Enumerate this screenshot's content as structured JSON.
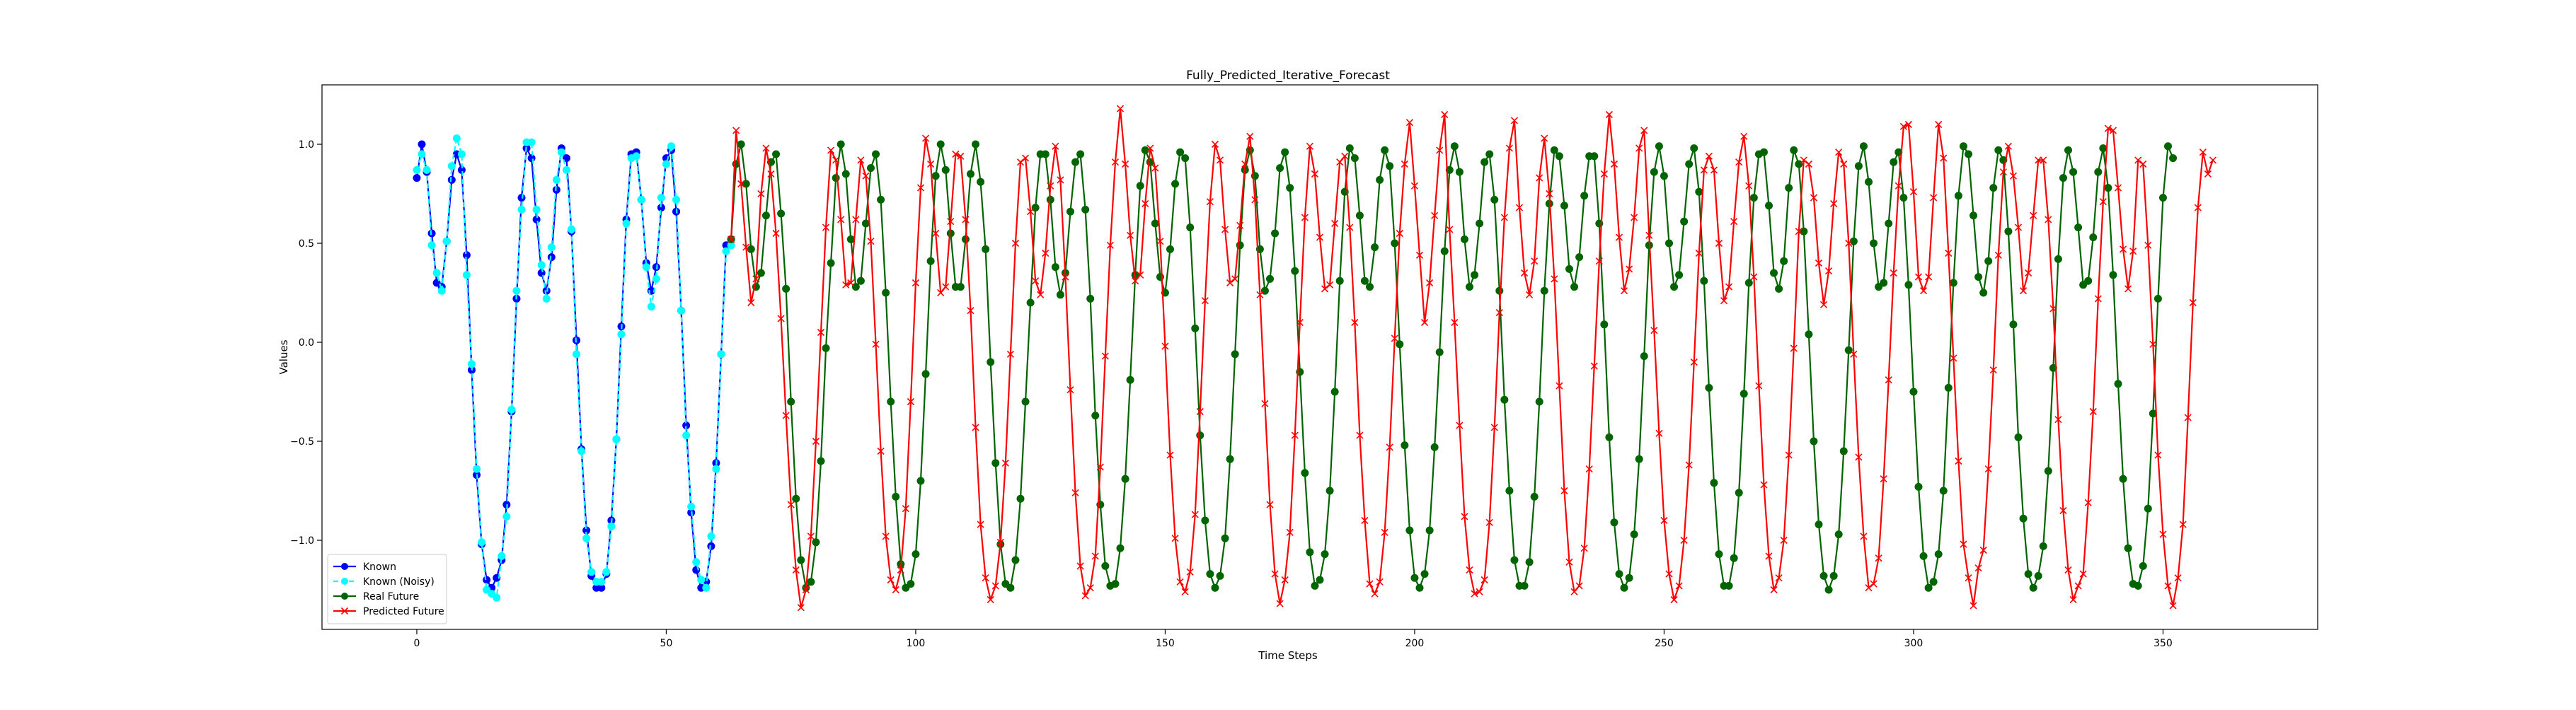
{
  "chart_data": {
    "type": "line",
    "title": "Fully_Predicted_Iterative_Forecast",
    "xlabel": "Time Steps",
    "ylabel": "Values",
    "xlim": [
      -19,
      381
    ],
    "ylim": [
      -1.45,
      1.3
    ],
    "xticks": [
      0,
      50,
      100,
      150,
      200,
      250,
      300,
      350
    ],
    "yticks": [
      -1.0,
      -0.5,
      0.0,
      0.5,
      1.0
    ],
    "xtick_labels": [
      "0",
      "50",
      "100",
      "150",
      "200",
      "250",
      "300",
      "350"
    ],
    "ytick_labels": [
      "−1.0",
      "−0.5",
      "0.0",
      "0.5",
      "1.0"
    ],
    "grid": false,
    "legend_position": "lower-left",
    "series": [
      {
        "name": "Known",
        "color": "#0000ff",
        "marker": "circle",
        "line_style": "solid",
        "x_start": 0,
        "values": [
          0.83,
          1.0,
          0.86,
          0.55,
          0.3,
          0.28,
          0.51,
          0.82,
          0.95,
          0.87,
          0.44,
          -0.14,
          -0.67,
          -1.02,
          -1.2,
          -1.24,
          -1.19,
          -1.1,
          -0.82,
          -0.35,
          0.22,
          0.73,
          0.98,
          0.93,
          0.62,
          0.35,
          0.26,
          0.43,
          0.77,
          0.98,
          0.93,
          0.56,
          0.01,
          -0.54,
          -0.95,
          -1.18,
          -1.24,
          -1.24,
          -1.17,
          -0.9,
          -0.49,
          0.08,
          0.62,
          0.95,
          0.96,
          0.72,
          0.4,
          0.26,
          0.38,
          0.68,
          0.93,
          0.97,
          0.66,
          0.16,
          -0.42,
          -0.86,
          -1.15,
          -1.24,
          -1.21,
          -1.03,
          -0.61,
          -0.06,
          0.49,
          0.52
        ]
      },
      {
        "name": "Known (Noisy)",
        "color": "#00ffff",
        "marker": "circle",
        "line_style": "dashed",
        "x_start": 0,
        "values": [
          0.87,
          0.95,
          0.87,
          0.49,
          0.35,
          0.26,
          0.51,
          0.89,
          1.03,
          0.95,
          0.34,
          -0.11,
          -0.64,
          -1.01,
          -1.25,
          -1.27,
          -1.29,
          -1.08,
          -0.88,
          -0.34,
          0.26,
          0.67,
          1.01,
          1.01,
          0.67,
          0.39,
          0.22,
          0.48,
          0.82,
          0.96,
          0.87,
          0.57,
          -0.06,
          -0.55,
          -0.99,
          -1.16,
          -1.21,
          -1.21,
          -1.16,
          -0.93,
          -0.49,
          0.04,
          0.6,
          0.93,
          0.94,
          0.72,
          0.38,
          0.18,
          0.32,
          0.73,
          0.9,
          0.99,
          0.72,
          0.16,
          -0.47,
          -0.83,
          -1.11,
          -1.2,
          -1.24,
          -0.98,
          -0.64,
          -0.06,
          0.46,
          0.49
        ]
      },
      {
        "name": "Real Future",
        "color": "#006400",
        "marker": "circle",
        "line_style": "solid",
        "x_start": 63,
        "values": [
          0.52,
          0.9,
          1.0,
          0.8,
          0.47,
          0.28,
          0.35,
          0.64,
          0.91,
          0.95,
          0.65,
          0.27,
          -0.3,
          -0.79,
          -1.1,
          -1.24,
          -1.21,
          -1.01,
          -0.6,
          -0.03,
          0.4,
          0.83,
          1.0,
          0.85,
          0.52,
          0.28,
          0.31,
          0.6,
          0.88,
          0.95,
          0.72,
          0.25,
          -0.3,
          -0.78,
          -1.12,
          -1.24,
          -1.22,
          -1.07,
          -0.7,
          -0.16,
          0.41,
          0.84,
          1.0,
          0.87,
          0.55,
          0.28,
          0.28,
          0.52,
          0.85,
          1.0,
          0.81,
          0.47,
          -0.1,
          -0.61,
          -1.02,
          -1.22,
          -1.24,
          -1.1,
          -0.79,
          -0.3,
          0.2,
          0.68,
          0.95,
          0.95,
          0.72,
          0.38,
          0.24,
          0.35,
          0.66,
          0.91,
          0.95,
          0.67,
          0.22,
          -0.37,
          -0.82,
          -1.13,
          -1.23,
          -1.22,
          -1.04,
          -0.69,
          -0.19,
          0.34,
          0.79,
          0.97,
          0.91,
          0.6,
          0.33,
          0.25,
          0.47,
          0.8,
          0.96,
          0.93,
          0.58,
          0.07,
          -0.47,
          -0.9,
          -1.17,
          -1.24,
          -1.18,
          -0.99,
          -0.59,
          -0.06,
          0.49,
          0.87,
          0.97,
          0.84,
          0.47,
          0.26,
          0.32,
          0.55,
          0.88,
          0.96,
          0.78,
          0.36,
          -0.15,
          -0.66,
          -1.06,
          -1.23,
          -1.2,
          -1.07,
          -0.75,
          -0.25,
          0.31,
          0.76,
          0.98,
          0.93,
          0.64,
          0.31,
          0.28,
          0.48,
          0.82,
          0.97,
          0.89,
          0.5,
          -0.01,
          -0.52,
          -0.95,
          -1.19,
          -1.24,
          -1.17,
          -0.95,
          -0.53,
          -0.05,
          0.46,
          0.87,
          0.99,
          0.86,
          0.52,
          0.28,
          0.34,
          0.6,
          0.91,
          0.95,
          0.72,
          0.26,
          -0.29,
          -0.75,
          -1.1,
          -1.23,
          -1.23,
          -1.11,
          -0.78,
          -0.3,
          0.26,
          0.7,
          0.97,
          0.94,
          0.69,
          0.37,
          0.28,
          0.43,
          0.74,
          0.94,
          0.94,
          0.6,
          0.09,
          -0.48,
          -0.91,
          -1.17,
          -1.24,
          -1.19,
          -0.97,
          -0.59,
          -0.07,
          0.49,
          0.86,
          0.99,
          0.84,
          0.5,
          0.28,
          0.34,
          0.61,
          0.9,
          0.98,
          0.76,
          0.31,
          -0.23,
          -0.71,
          -1.07,
          -1.23,
          -1.23,
          -1.09,
          -0.76,
          -0.26,
          0.3,
          0.73,
          0.95,
          0.96,
          0.69,
          0.35,
          0.27,
          0.41,
          0.78,
          0.97,
          0.9,
          0.56,
          0.04,
          -0.5,
          -0.92,
          -1.18,
          -1.25,
          -1.18,
          -0.97,
          -0.55,
          -0.04,
          0.51,
          0.89,
          0.99,
          0.81,
          0.5,
          0.28,
          0.3,
          0.6,
          0.91,
          0.96,
          0.73,
          0.29,
          -0.25,
          -0.73,
          -1.08,
          -1.24,
          -1.21,
          -1.07,
          -0.75,
          -0.23,
          0.3,
          0.74,
          0.99,
          0.95,
          0.64,
          0.33,
          0.25,
          0.41,
          0.78,
          0.97,
          0.92,
          0.56,
          0.09,
          -0.48,
          -0.89,
          -1.17,
          -1.24,
          -1.18,
          -1.03,
          -0.65,
          -0.13,
          0.42,
          0.83,
          0.97,
          0.86,
          0.58,
          0.29,
          0.31,
          0.53,
          0.86,
          0.98,
          0.78,
          0.34,
          -0.21,
          -0.69,
          -1.04,
          -1.22,
          -1.23,
          -1.13,
          -0.84,
          -0.36,
          0.22,
          0.73,
          0.99,
          0.93
        ]
      },
      {
        "name": "Predicted Future",
        "color": "#ff0000",
        "marker": "x",
        "line_style": "solid",
        "x_start": 63,
        "values": [
          0.52,
          1.07,
          0.8,
          0.48,
          0.2,
          0.32,
          0.75,
          0.98,
          0.85,
          0.55,
          0.12,
          -0.37,
          -0.82,
          -1.15,
          -1.34,
          -1.25,
          -0.98,
          -0.5,
          0.05,
          0.58,
          0.97,
          0.92,
          0.62,
          0.29,
          0.3,
          0.62,
          0.92,
          0.84,
          0.51,
          -0.01,
          -0.55,
          -0.98,
          -1.2,
          -1.25,
          -1.15,
          -0.84,
          -0.3,
          0.3,
          0.78,
          1.03,
          0.9,
          0.55,
          0.25,
          0.28,
          0.61,
          0.95,
          0.94,
          0.62,
          0.16,
          -0.43,
          -0.92,
          -1.19,
          -1.3,
          -1.23,
          -1.01,
          -0.61,
          -0.06,
          0.5,
          0.91,
          0.93,
          0.66,
          0.31,
          0.24,
          0.45,
          0.79,
          0.99,
          0.82,
          0.33,
          -0.24,
          -0.76,
          -1.13,
          -1.28,
          -1.24,
          -1.08,
          -0.63,
          -0.07,
          0.49,
          0.91,
          1.18,
          0.9,
          0.54,
          0.31,
          0.34,
          0.7,
          0.98,
          0.88,
          0.51,
          -0.02,
          -0.57,
          -0.99,
          -1.21,
          -1.26,
          -1.16,
          -0.87,
          -0.35,
          0.21,
          0.71,
          1.0,
          0.92,
          0.57,
          0.3,
          0.32,
          0.59,
          0.9,
          1.04,
          0.72,
          0.24,
          -0.31,
          -0.82,
          -1.17,
          -1.32,
          -1.2,
          -0.96,
          -0.47,
          0.1,
          0.63,
          0.99,
          0.85,
          0.53,
          0.27,
          0.29,
          0.6,
          0.91,
          0.94,
          0.58,
          0.1,
          -0.47,
          -0.9,
          -1.22,
          -1.27,
          -1.21,
          -0.96,
          -0.53,
          0.02,
          0.55,
          0.9,
          1.11,
          0.79,
          0.44,
          0.1,
          0.3,
          0.64,
          0.97,
          1.15,
          0.57,
          0.1,
          -0.42,
          -0.88,
          -1.15,
          -1.27,
          -1.26,
          -1.2,
          -0.91,
          -0.43,
          0.15,
          0.63,
          0.98,
          1.12,
          0.68,
          0.35,
          0.24,
          0.41,
          0.83,
          1.03,
          0.75,
          0.32,
          -0.22,
          -0.75,
          -1.11,
          -1.26,
          -1.23,
          -1.04,
          -0.64,
          -0.12,
          0.41,
          0.85,
          1.15,
          0.9,
          0.53,
          0.26,
          0.37,
          0.63,
          0.98,
          1.07,
          0.54,
          0.06,
          -0.46,
          -0.9,
          -1.17,
          -1.3,
          -1.23,
          -1.0,
          -0.62,
          -0.1,
          0.45,
          0.87,
          0.94,
          0.87,
          0.5,
          0.21,
          0.28,
          0.61,
          0.91,
          1.04,
          0.79,
          0.33,
          -0.22,
          -0.72,
          -1.08,
          -1.25,
          -1.19,
          -1.0,
          -0.57,
          -0.03,
          0.56,
          0.92,
          0.9,
          0.73,
          0.4,
          0.19,
          0.36,
          0.7,
          0.96,
          0.9,
          0.5,
          -0.06,
          -0.58,
          -0.98,
          -1.24,
          -1.22,
          -1.09,
          -0.69,
          -0.19,
          0.35,
          0.79,
          1.09,
          1.1,
          0.76,
          0.33,
          0.26,
          0.33,
          0.73,
          1.1,
          0.93,
          0.45,
          -0.08,
          -0.6,
          -1.02,
          -1.19,
          -1.33,
          -1.14,
          -1.05,
          -0.64,
          -0.14,
          0.44,
          0.86,
          0.99,
          0.84,
          0.58,
          0.26,
          0.35,
          0.64,
          0.92,
          0.92,
          0.62,
          0.17,
          -0.39,
          -0.85,
          -1.15,
          -1.3,
          -1.23,
          -1.17,
          -0.81,
          -0.35,
          0.22,
          0.71,
          1.08,
          1.07,
          0.78,
          0.47,
          0.27,
          0.46,
          0.92,
          0.9,
          0.49,
          -0.01,
          -0.57,
          -0.97,
          -1.23,
          -1.33,
          -1.19,
          -0.92,
          -0.38,
          0.2,
          0.68,
          0.96,
          0.85,
          0.92
        ]
      }
    ]
  }
}
